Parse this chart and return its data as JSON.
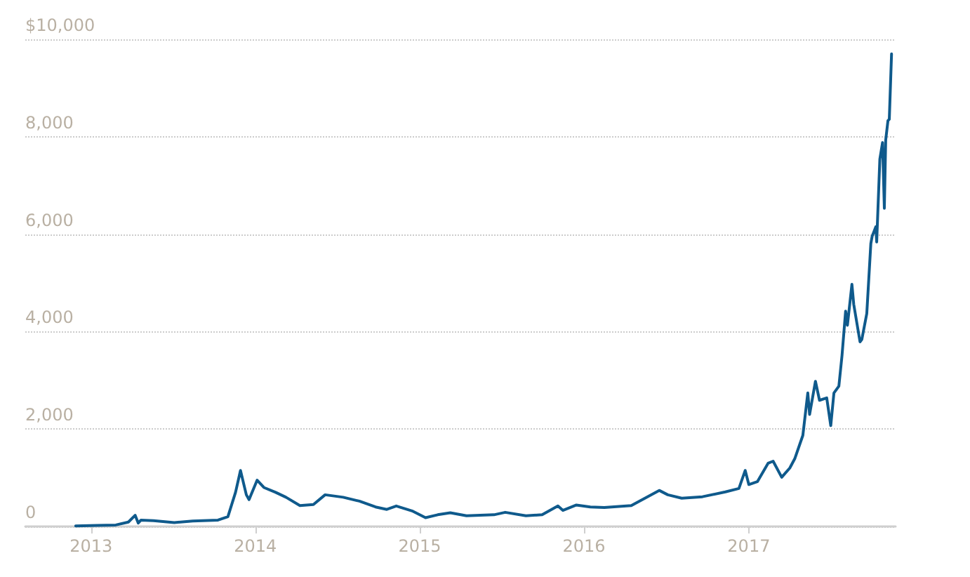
{
  "chart_data": {
    "type": "line",
    "color": "#0f5a8c",
    "line_style": "solid",
    "marker": "none",
    "grid": "y",
    "xlim": [
      "2012-08-08",
      "2017-11-23"
    ],
    "xticks": [
      "2013",
      "2014",
      "2015",
      "2016",
      "2017"
    ],
    "ylim": [
      0,
      10000
    ],
    "yticks": [
      {
        "value": 0,
        "label": "0"
      },
      {
        "value": 2000,
        "label": "2,000"
      },
      {
        "value": 4000,
        "label": "4,000"
      },
      {
        "value": 6000,
        "label": "6,000"
      },
      {
        "value": 8000,
        "label": "8,000"
      },
      {
        "value": 10000,
        "label": "$10,000"
      }
    ],
    "x": [
      "2012-11-28",
      "2013-01-15",
      "2013-02-25",
      "2013-03-25",
      "2013-04-09",
      "2013-04-16",
      "2013-04-22",
      "2013-05-20",
      "2013-07-05",
      "2013-08-15",
      "2013-10-10",
      "2013-11-01",
      "2013-11-18",
      "2013-11-29",
      "2013-12-12",
      "2013-12-18",
      "2014-01-05",
      "2014-01-20",
      "2014-02-15",
      "2014-03-10",
      "2014-04-10",
      "2014-05-10",
      "2014-06-05",
      "2014-07-15",
      "2014-08-20",
      "2014-09-25",
      "2014-10-20",
      "2014-11-10",
      "2014-12-15",
      "2015-01-14",
      "2015-02-10",
      "2015-03-10",
      "2015-04-15",
      "2015-06-15",
      "2015-07-10",
      "2015-08-25",
      "2015-09-30",
      "2015-11-04",
      "2015-11-15",
      "2015-12-15",
      "2016-01-15",
      "2016-02-15",
      "2016-04-15",
      "2016-06-16",
      "2016-07-05",
      "2016-08-05",
      "2016-09-20",
      "2016-11-10",
      "2016-12-10",
      "2016-12-24",
      "2017-01-01",
      "2017-01-20",
      "2017-02-13",
      "2017-02-24",
      "2017-03-15",
      "2017-04-02",
      "2017-04-13",
      "2017-05-01",
      "2017-05-12",
      "2017-05-16",
      "2017-05-29",
      "2017-06-07",
      "2017-06-23",
      "2017-07-02",
      "2017-07-09",
      "2017-07-20",
      "2017-07-27",
      "2017-08-04",
      "2017-08-08",
      "2017-08-18",
      "2017-08-22",
      "2017-09-05",
      "2017-09-09",
      "2017-09-20",
      "2017-09-29",
      "2017-10-02",
      "2017-10-10",
      "2017-10-12",
      "2017-10-19",
      "2017-10-25",
      "2017-10-29",
      "2017-11-01",
      "2017-11-06",
      "2017-11-09",
      "2017-11-14"
    ],
    "values": [
      10,
      20,
      30,
      90,
      230,
      70,
      130,
      120,
      80,
      110,
      130,
      200,
      700,
      1150,
      650,
      550,
      950,
      800,
      700,
      600,
      430,
      450,
      650,
      600,
      520,
      400,
      350,
      420,
      320,
      180,
      240,
      280,
      220,
      240,
      290,
      220,
      240,
      420,
      330,
      440,
      400,
      390,
      430,
      740,
      650,
      580,
      610,
      710,
      780,
      1150,
      860,
      920,
      1300,
      1340,
      1010,
      1200,
      1390,
      1870,
      2740,
      2300,
      2980,
      2590,
      2640,
      2070,
      2740,
      2880,
      3510,
      4420,
      4130,
      4970,
      4560,
      3790,
      3840,
      4370,
      5810,
      5960,
      6150,
      5840,
      7540,
      7880,
      6530,
      7930,
      8330,
      8360,
      9700
    ]
  }
}
